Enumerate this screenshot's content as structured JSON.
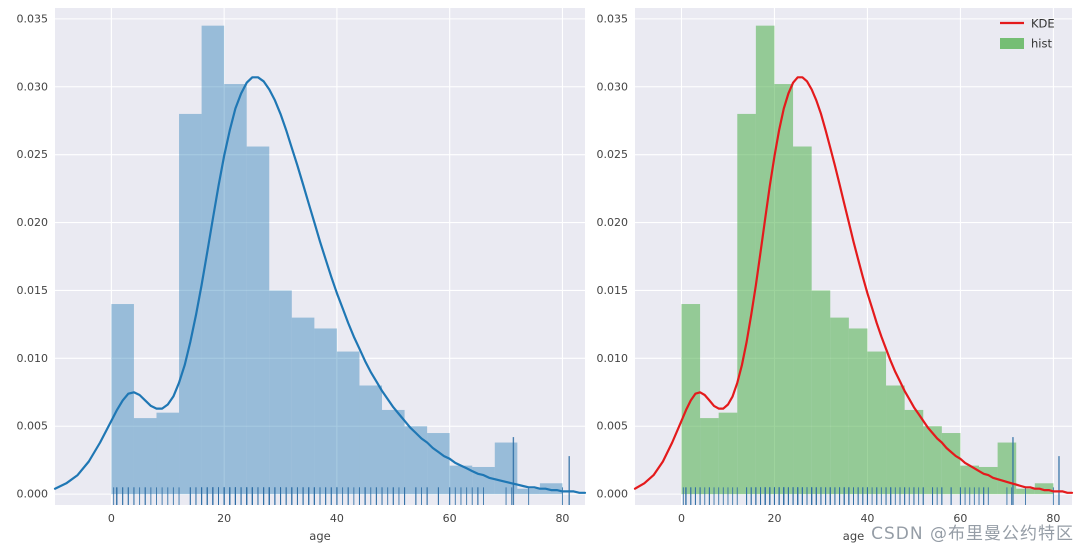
{
  "page": {
    "watermark": "CSDN @布里曼公约特区",
    "background": "#ffffff"
  },
  "chart_data": {
    "type": "bar",
    "subtype": "distplot (histogram + KDE + rug), two subplots of the same data",
    "title": "",
    "xlabel": "age",
    "ylabel": "",
    "xlim": [
      -10,
      84
    ],
    "ylim": [
      -0.0008,
      0.0358
    ],
    "xticks": [
      0,
      20,
      40,
      60,
      80
    ],
    "yticks": [
      0,
      0.005,
      0.01,
      0.015,
      0.02,
      0.025,
      0.03,
      0.035
    ],
    "grid": true,
    "plot_bg": "#eaeaf2",
    "grid_color": "#ffffff",
    "tick_color": "#444444",
    "bins": {
      "start": 0,
      "width": 4,
      "densities": [
        0.014,
        0.0056,
        0.006,
        0.028,
        0.0345,
        0.0302,
        0.0256,
        0.015,
        0.013,
        0.0122,
        0.0105,
        0.008,
        0.0062,
        0.005,
        0.0045,
        0.0021,
        0.002,
        0.0038,
        0.0004,
        0.0008
      ]
    },
    "kde_points": [
      [
        -10,
        0.0004
      ],
      [
        -8,
        0.0008
      ],
      [
        -6,
        0.0014
      ],
      [
        -4,
        0.0024
      ],
      [
        -2,
        0.0038
      ],
      [
        0,
        0.0054
      ],
      [
        1,
        0.0062
      ],
      [
        2,
        0.0069
      ],
      [
        3,
        0.0074
      ],
      [
        4,
        0.0075
      ],
      [
        5,
        0.0073
      ],
      [
        6,
        0.0069
      ],
      [
        7,
        0.0065
      ],
      [
        8,
        0.0063
      ],
      [
        9,
        0.0063
      ],
      [
        10,
        0.0066
      ],
      [
        11,
        0.0072
      ],
      [
        12,
        0.0082
      ],
      [
        13,
        0.0095
      ],
      [
        14,
        0.0112
      ],
      [
        15,
        0.0132
      ],
      [
        16,
        0.0154
      ],
      [
        17,
        0.0178
      ],
      [
        18,
        0.0203
      ],
      [
        19,
        0.0227
      ],
      [
        20,
        0.0249
      ],
      [
        21,
        0.0268
      ],
      [
        22,
        0.0284
      ],
      [
        23,
        0.0295
      ],
      [
        24,
        0.0303
      ],
      [
        25,
        0.0307
      ],
      [
        26,
        0.0307
      ],
      [
        27,
        0.0304
      ],
      [
        28,
        0.0298
      ],
      [
        29,
        0.029
      ],
      [
        30,
        0.028
      ],
      [
        31,
        0.0268
      ],
      [
        32,
        0.0255
      ],
      [
        33,
        0.0242
      ],
      [
        34,
        0.0228
      ],
      [
        35,
        0.0214
      ],
      [
        36,
        0.02
      ],
      [
        37,
        0.0186
      ],
      [
        38,
        0.0173
      ],
      [
        39,
        0.016
      ],
      [
        40,
        0.0148
      ],
      [
        41,
        0.0137
      ],
      [
        42,
        0.0126
      ],
      [
        43,
        0.0116
      ],
      [
        44,
        0.0107
      ],
      [
        45,
        0.0098
      ],
      [
        46,
        0.009
      ],
      [
        47,
        0.0083
      ],
      [
        48,
        0.0076
      ],
      [
        49,
        0.007
      ],
      [
        50,
        0.0064
      ],
      [
        51,
        0.0059
      ],
      [
        52,
        0.0054
      ],
      [
        53,
        0.0049
      ],
      [
        54,
        0.0045
      ],
      [
        55,
        0.0041
      ],
      [
        56,
        0.0038
      ],
      [
        57,
        0.0034
      ],
      [
        58,
        0.0031
      ],
      [
        59,
        0.0028
      ],
      [
        60,
        0.0026
      ],
      [
        61,
        0.0023
      ],
      [
        62,
        0.0021
      ],
      [
        63,
        0.0019
      ],
      [
        64,
        0.0017
      ],
      [
        65,
        0.0015
      ],
      [
        66,
        0.0014
      ],
      [
        67,
        0.0012
      ],
      [
        68,
        0.0011
      ],
      [
        69,
        0.001
      ],
      [
        70,
        0.0009
      ],
      [
        71,
        0.0008
      ],
      [
        72,
        0.0007
      ],
      [
        73,
        0.0006
      ],
      [
        74,
        0.0005
      ],
      [
        75,
        0.0005
      ],
      [
        76,
        0.0004
      ],
      [
        77,
        0.0004
      ],
      [
        78,
        0.0003
      ],
      [
        79,
        0.0003
      ],
      [
        80,
        0.0002
      ],
      [
        81,
        0.0002
      ],
      [
        82,
        0.0002
      ],
      [
        83,
        0.0001
      ],
      [
        84,
        0.0001
      ]
    ],
    "rug_ages": [
      0.4,
      0.9,
      1,
      2,
      2,
      3,
      3,
      4,
      4,
      5,
      6,
      6,
      7,
      8,
      9,
      10,
      11,
      12,
      14,
      14,
      15,
      15,
      16,
      16,
      16,
      17,
      17,
      17,
      18,
      18,
      18,
      18,
      18,
      19,
      19,
      19,
      19,
      20,
      20,
      20,
      20,
      21,
      21,
      21,
      21,
      22,
      22,
      22,
      22,
      22,
      23,
      23,
      23,
      24,
      24,
      24,
      24,
      25,
      25,
      25,
      25,
      26,
      26,
      26,
      27,
      27,
      27,
      28,
      28,
      28,
      28,
      29,
      29,
      29,
      30,
      30,
      30,
      30,
      31,
      31,
      32,
      32,
      32,
      33,
      33,
      34,
      34,
      34,
      35,
      35,
      35,
      36,
      36,
      36,
      37,
      37,
      38,
      38,
      39,
      39,
      40,
      40,
      40,
      41,
      42,
      42,
      43,
      44,
      44,
      45,
      45,
      45,
      46,
      47,
      47,
      48,
      48,
      49,
      50,
      50,
      51,
      52,
      52,
      54,
      54,
      55,
      56,
      56,
      58,
      58,
      60,
      60,
      61,
      62,
      63,
      64,
      65,
      65,
      66,
      70,
      71,
      74,
      80
    ],
    "tall_marks": [
      {
        "x": 71.3,
        "top": 0.0042
      },
      {
        "x": 81.2,
        "top": 0.0028
      }
    ],
    "rug_color": "#2e6da4",
    "plots": [
      {
        "name": "blue-distplot",
        "hist_color": "#1f77b4",
        "hist_opacity": 0.4,
        "kde_color": "#1f77b4",
        "legend": null
      },
      {
        "name": "green-hist-red-kde",
        "hist_color": "#4daf4a",
        "hist_opacity": 0.55,
        "kde_color": "#e41a1c",
        "legend": {
          "position": "upper right",
          "entries": [
            {
              "label": "KDE",
              "swatch": "line",
              "color": "#e41a1c"
            },
            {
              "label": "hist",
              "swatch": "patch",
              "color": "#4daf4a",
              "opacity": 0.75
            }
          ]
        }
      }
    ]
  }
}
